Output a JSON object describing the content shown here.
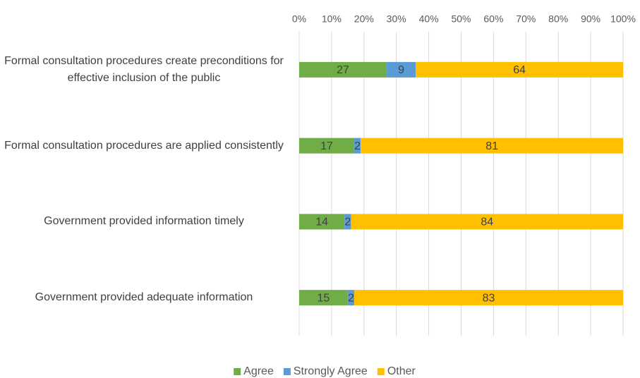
{
  "chart_data": {
    "type": "stacked-barh",
    "categories": [
      "Formal consultation procedures create preconditions for effective inclusion of the public",
      "Formal consultation procedures are applied consistently",
      "Government provided information timely",
      "Government provided adequate information"
    ],
    "series": [
      {
        "name": "Agree",
        "color": "#70ad47",
        "values": [
          27,
          17,
          14,
          15
        ]
      },
      {
        "name": "Strongly Agree",
        "color": "#5b9bd5",
        "values": [
          9,
          2,
          2,
          2
        ]
      },
      {
        "name": "Other",
        "color": "#ffc000",
        "values": [
          64,
          81,
          84,
          83
        ]
      }
    ],
    "xlim": [
      0,
      100
    ],
    "xticks": [
      {
        "value": 0,
        "label": "0%"
      },
      {
        "value": 10,
        "label": "10%"
      },
      {
        "value": 20,
        "label": "20%"
      },
      {
        "value": 30,
        "label": "30%"
      },
      {
        "value": 40,
        "label": "40%"
      },
      {
        "value": 50,
        "label": "50%"
      },
      {
        "value": 60,
        "label": "60%"
      },
      {
        "value": 70,
        "label": "70%"
      },
      {
        "value": 80,
        "label": "80%"
      },
      {
        "value": 90,
        "label": "90%"
      },
      {
        "value": 100,
        "label": "100%"
      }
    ],
    "grid": true,
    "legend": "bottom"
  }
}
